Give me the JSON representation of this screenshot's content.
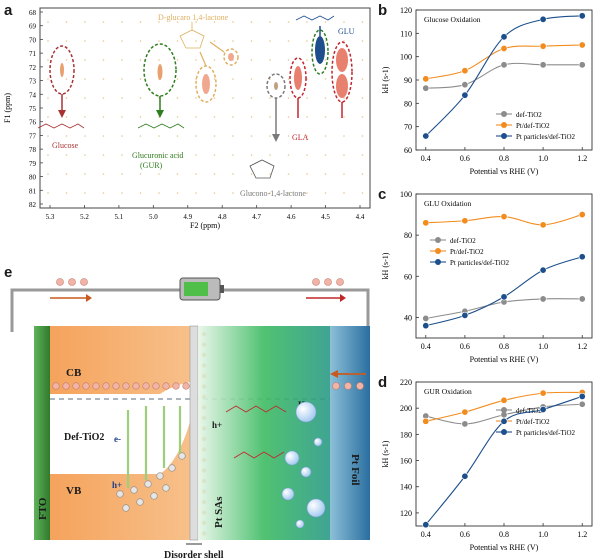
{
  "panels": {
    "a": "a",
    "b": "b",
    "c": "c",
    "d": "d",
    "e": "e"
  },
  "nmr": {
    "y_axis_label": "F1 (ppm)",
    "x_axis_label": "F2 (ppm)",
    "y_ticks": [
      "68",
      "69",
      "70",
      "71",
      "72",
      "73",
      "74",
      "75",
      "76",
      "77",
      "78",
      "79",
      "80",
      "81",
      "82"
    ],
    "x_ticks": [
      "5.3",
      "5.2",
      "5.1",
      "5.0",
      "4.9",
      "4.8",
      "4.7",
      "4.6",
      "4.5",
      "4.4"
    ],
    "labels": {
      "glucose": "Glucose",
      "gur_line1": "Glucuronic acid",
      "gur_line2": "(GUR)",
      "glucaro": "D-glucaro 1,4-lactone",
      "glu": "GLU",
      "gla": "GLA",
      "glucono": "Glucono-1,4-lactone"
    },
    "colors": {
      "glucose": "#a83232",
      "gur": "#2e7d1e",
      "glucaro": "#e0b060",
      "glu": "#1f4e8c",
      "gla": "#c0282f",
      "glucono": "#7a7a7a"
    }
  },
  "chart_data": [
    {
      "type": "line",
      "title": "Glucose Oxidation",
      "xlabel": "Potential vs RHE (V)",
      "ylabel": "kH (s-1)",
      "xlim": [
        0.35,
        1.25
      ],
      "ylim": [
        60,
        120
      ],
      "x_ticks": [
        "0.4",
        "0.6",
        "0.8",
        "1.0",
        "1.2"
      ],
      "y_ticks": [
        "60",
        "70",
        "80",
        "90",
        "100",
        "110",
        "120"
      ],
      "x": [
        0.4,
        0.6,
        0.8,
        1.0,
        1.2
      ],
      "series": [
        {
          "name": "def-TiO2",
          "color": "#8c8c8c",
          "values": [
            86.5,
            88.0,
            96.5,
            96.5,
            96.5
          ]
        },
        {
          "name": "Pt/def-TiO2",
          "color": "#f28c1e",
          "values": [
            90.5,
            94.0,
            103.5,
            104.5,
            105.0
          ]
        },
        {
          "name": "Pt particles/def-TiO2",
          "color": "#1c4f8c",
          "values": [
            66.0,
            83.5,
            108.5,
            116.0,
            117.5
          ]
        }
      ]
    },
    {
      "type": "line",
      "title": "GLU Oxidation",
      "xlabel": "Potential vs RHE (V)",
      "ylabel": "kH (s-1)",
      "xlim": [
        0.35,
        1.25
      ],
      "ylim": [
        30,
        100
      ],
      "x_ticks": [
        "0.4",
        "0.6",
        "0.8",
        "1.0",
        "1.2"
      ],
      "y_ticks": [
        "40",
        "60",
        "80",
        "100"
      ],
      "x": [
        0.4,
        0.6,
        0.8,
        1.0,
        1.2
      ],
      "series": [
        {
          "name": "def-TiO2",
          "color": "#8c8c8c",
          "values": [
            39.5,
            43.0,
            47.5,
            49.0,
            49.0
          ]
        },
        {
          "name": "Pt/def-TiO2",
          "color": "#f28c1e",
          "values": [
            86.0,
            87.0,
            89.0,
            85.0,
            90.0
          ]
        },
        {
          "name": "Pt particles/def-TiO2",
          "color": "#1c4f8c",
          "values": [
            36.0,
            41.0,
            50.0,
            63.0,
            69.5
          ]
        }
      ]
    },
    {
      "type": "line",
      "title": "GUR Oxidation",
      "xlabel": "Potential vs RHE (V)",
      "ylabel": "kH (s-1)",
      "xlim": [
        0.35,
        1.25
      ],
      "ylim": [
        110,
        220
      ],
      "x_ticks": [
        "0.4",
        "0.6",
        "0.8",
        "1.0",
        "1.2"
      ],
      "y_ticks": [
        "120",
        "140",
        "160",
        "180",
        "200",
        "220"
      ],
      "x": [
        0.4,
        0.6,
        0.8,
        1.0,
        1.2
      ],
      "series": [
        {
          "name": "def-TiO2",
          "color": "#8c8c8c",
          "values": [
            194.0,
            188.0,
            195.0,
            201.0,
            203.0
          ]
        },
        {
          "name": "Pt/def-TiO2",
          "color": "#f28c1e",
          "values": [
            190.0,
            197.0,
            206.0,
            211.5,
            212.0
          ]
        },
        {
          "name": "Pt particles/def-TiO2",
          "color": "#1c4f8c",
          "values": [
            111.0,
            148.0,
            190.0,
            199.0,
            209.0
          ]
        }
      ]
    }
  ],
  "schematic": {
    "fto": "FTO",
    "cb": "CB",
    "vb": "VB",
    "def_tio2": "Def-TiO2",
    "pt_sas": "Pt SAs",
    "pt_foil": "Pt Foil",
    "disorder_shell": "Disorder shell",
    "electron": "e-",
    "hole": "h+",
    "h_label": "H",
    "colors": {
      "orange": "#f5a35c",
      "green": "#2fae55",
      "blue": "#2a6ea0",
      "fto": "#3d8f3a"
    }
  }
}
